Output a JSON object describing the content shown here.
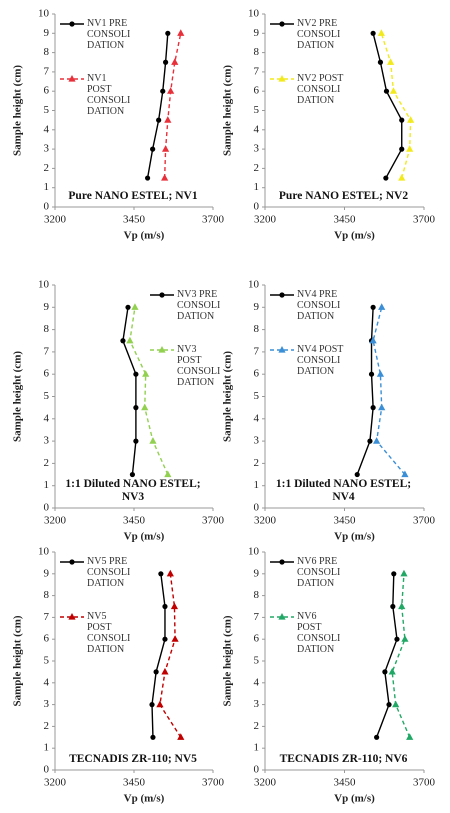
{
  "chart_data": [
    {
      "type": "line",
      "title": "Pure NANO ESTEL; NV1",
      "xlabel": "Vp (m/s)",
      "ylabel": "Sample height (cm)",
      "xlim": [
        3200,
        3700
      ],
      "xticks": [
        3200,
        3450,
        3700
      ],
      "ylim": [
        0,
        10
      ],
      "yticks": [
        0,
        1,
        2,
        3,
        4,
        5,
        6,
        7,
        8,
        9,
        10
      ],
      "series": [
        {
          "name": "NV1 PRE\nCONSOLI\nDATION",
          "color": "#000000",
          "marker": "circle",
          "dashed": false,
          "x": [
            3493,
            3509,
            3528,
            3541,
            3550,
            3557
          ],
          "values": [
            1.5,
            3,
            4.5,
            6,
            7.5,
            9
          ]
        },
        {
          "name": "NV1\nPOST\nCONSOLI\nDATION",
          "color": "#e8303a",
          "marker": "triangle",
          "dashed": true,
          "x": [
            3547,
            3550,
            3557,
            3566,
            3579,
            3598
          ],
          "values": [
            1.5,
            3,
            4.5,
            6,
            7.5,
            9
          ]
        }
      ]
    },
    {
      "type": "line",
      "title": "Pure NANO ESTEL; NV2",
      "xlabel": "Vp (m/s)",
      "ylabel": "Sample height (cm)",
      "xlim": [
        3200,
        3700
      ],
      "xticks": [
        3200,
        3450,
        3700
      ],
      "ylim": [
        0,
        10
      ],
      "yticks": [
        0,
        1,
        2,
        3,
        4,
        5,
        6,
        7,
        8,
        9,
        10
      ],
      "series": [
        {
          "name": "NV2 PRE\nCONSOLI\nDATION",
          "color": "#000000",
          "marker": "circle",
          "dashed": false,
          "x": [
            3580,
            3630,
            3630,
            3582,
            3563,
            3540
          ],
          "values": [
            1.5,
            3,
            4.5,
            6,
            7.5,
            9
          ]
        },
        {
          "name": "NV2 POST\nCONSOLI\nDATION",
          "color": "#f2ea1c",
          "marker": "triangle",
          "dashed": true,
          "x": [
            3630,
            3655,
            3658,
            3604,
            3595,
            3566
          ],
          "values": [
            1.5,
            3,
            4.5,
            6,
            7.5,
            9
          ]
        }
      ]
    },
    {
      "type": "line",
      "title": "1:1 Diluted NANO ESTEL;\nNV3",
      "xlabel": "Vp (m/s)",
      "ylabel": "Sample height (cm)",
      "xlim": [
        3200,
        3700
      ],
      "xticks": [
        3200,
        3450,
        3700
      ],
      "ylim": [
        0,
        10
      ],
      "yticks": [
        0,
        1,
        2,
        3,
        4,
        5,
        6,
        7,
        8,
        9,
        10
      ],
      "series": [
        {
          "name": "NV3 PRE\nCONSOLI\nDATION",
          "color": "#000000",
          "marker": "circle",
          "dashed": false,
          "x": [
            3445,
            3456,
            3456,
            3456,
            3415,
            3431
          ],
          "values": [
            1.5,
            3,
            4.5,
            6,
            7.5,
            9
          ]
        },
        {
          "name": "NV3\nPOST\nCONSOLI\nDATION",
          "color": "#92d050",
          "marker": "triangle",
          "dashed": true,
          "x": [
            3557,
            3510,
            3484,
            3487,
            3437,
            3453
          ],
          "values": [
            1.5,
            3,
            4.5,
            6,
            7.5,
            9
          ]
        }
      ]
    },
    {
      "type": "line",
      "title": "1:1 Diluted NANO ESTEL;\nNV4",
      "xlabel": "Vp (m/s)",
      "ylabel": "Sample height (cm)",
      "xlim": [
        3200,
        3700
      ],
      "xticks": [
        3200,
        3450,
        3700
      ],
      "ylim": [
        0,
        10
      ],
      "yticks": [
        0,
        1,
        2,
        3,
        4,
        5,
        6,
        7,
        8,
        9,
        10
      ],
      "series": [
        {
          "name": "NV4 PRE\nCONSOLI\nDATION",
          "color": "#000000",
          "marker": "circle",
          "dashed": false,
          "x": [
            3490,
            3530,
            3540,
            3535,
            3535,
            3540
          ],
          "values": [
            1.5,
            3,
            4.5,
            6,
            7.5,
            9
          ]
        },
        {
          "name": "NV4 POST\nCONSOLI\nDATION",
          "color": "#3b8fd6",
          "marker": "triangle",
          "dashed": true,
          "x": [
            3640,
            3551,
            3567,
            3563,
            3540,
            3567
          ],
          "values": [
            1.5,
            3,
            4.5,
            6,
            7.5,
            9
          ]
        }
      ]
    },
    {
      "type": "line",
      "title": "TECNADIS ZR-110; NV5",
      "xlabel": "Vp (m/s)",
      "ylabel": "Sample height (cm)",
      "xlim": [
        3200,
        3700
      ],
      "xticks": [
        3200,
        3450,
        3700
      ],
      "ylim": [
        0,
        10
      ],
      "yticks": [
        0,
        1,
        2,
        3,
        4,
        5,
        6,
        7,
        8,
        9,
        10
      ],
      "series": [
        {
          "name": "NV5 PRE\nCONSOLI\nDATION",
          "color": "#000000",
          "marker": "circle",
          "dashed": false,
          "x": [
            3510,
            3507,
            3520,
            3548,
            3548,
            3535
          ],
          "values": [
            1.5,
            3,
            4.5,
            6,
            7.5,
            9
          ]
        },
        {
          "name": "NV5\nPOST\nCONSOLI\nDATION",
          "color": "#c00000",
          "marker": "triangle",
          "dashed": true,
          "x": [
            3598,
            3532,
            3548,
            3580,
            3578,
            3565
          ],
          "values": [
            1.5,
            3,
            4.5,
            6,
            7.5,
            9
          ]
        }
      ]
    },
    {
      "type": "line",
      "title": "TECNADIS ZR-110; NV6",
      "xlabel": "Vp (m/s)",
      "ylabel": "Sample height (cm)",
      "xlim": [
        3200,
        3700
      ],
      "xticks": [
        3200,
        3450,
        3700
      ],
      "ylim": [
        0,
        10
      ],
      "yticks": [
        0,
        1,
        2,
        3,
        4,
        5,
        6,
        7,
        8,
        9,
        10
      ],
      "series": [
        {
          "name": "NV6 PRE\nCONSOLI\nDATION",
          "color": "#000000",
          "marker": "circle",
          "dashed": false,
          "x": [
            3551,
            3590,
            3577,
            3615,
            3602,
            3605
          ],
          "values": [
            1.5,
            3,
            4.5,
            6,
            7.5,
            9
          ]
        },
        {
          "name": "NV6\nPOST\nCONSOLI\nDATION",
          "color": "#22a866",
          "marker": "triangle",
          "dashed": true,
          "x": [
            3655,
            3611,
            3600,
            3640,
            3630,
            3637
          ],
          "values": [
            1.5,
            3,
            4.5,
            6,
            7.5,
            9
          ]
        }
      ]
    }
  ]
}
